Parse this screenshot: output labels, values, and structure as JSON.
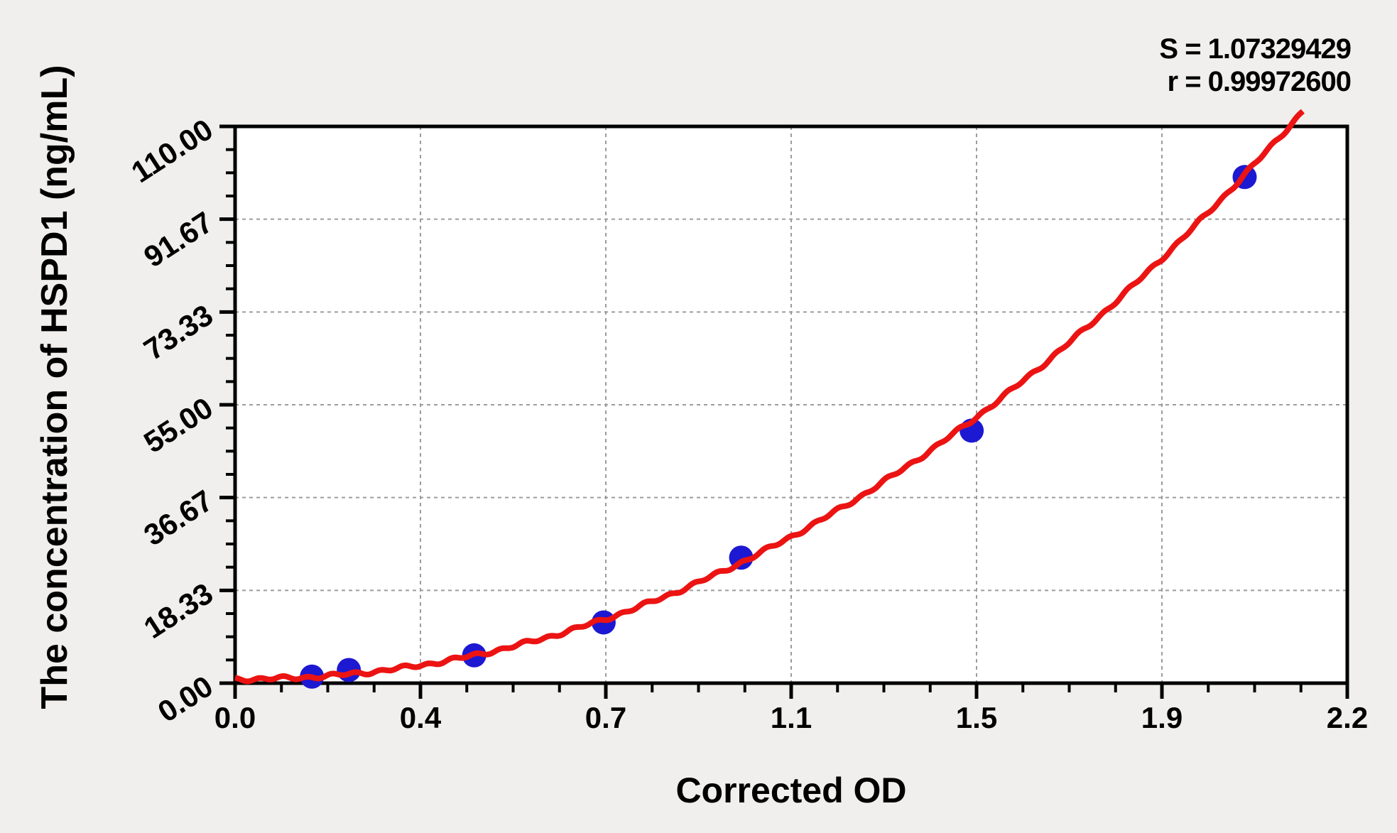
{
  "figure": {
    "background_color": "#f0efed",
    "plot_background_color": "#ffffff",
    "frame_color": "#000000"
  },
  "chart_data": {
    "type": "scatter",
    "title": "",
    "xlabel": "Corrected OD",
    "ylabel": "The concentration of HSPD1 (ng/mL)",
    "annotations": [
      "S = 1.07329429",
      "r = 0.99972600"
    ],
    "xlim": [
      0,
      2.2
    ],
    "ylim": [
      0,
      110
    ],
    "x_tick_labels": [
      "0.0",
      "0.4",
      "0.7",
      "1.1",
      "1.5",
      "1.9",
      "2.2"
    ],
    "x_tick_values": [
      0,
      0.36667,
      0.73333,
      1.1,
      1.46667,
      1.83333,
      2.2
    ],
    "y_tick_labels": [
      "0.00",
      "18.33",
      "36.67",
      "55.00",
      "73.33",
      "91.67",
      "110.00"
    ],
    "y_tick_values": [
      0,
      18.33,
      36.67,
      55.0,
      73.33,
      91.67,
      110.0
    ],
    "minor_ticks_between_majors": 3,
    "grid": {
      "style": "dashed",
      "color": "#9c9c9c",
      "on_major_ticks": true
    },
    "legend": "none",
    "series": [
      {
        "name": "standard-points",
        "type": "scatter",
        "marker": "circle",
        "color": "#1d18d1",
        "points": [
          {
            "x": 0.152,
            "y": 1.3
          },
          {
            "x": 0.225,
            "y": 2.6
          },
          {
            "x": 0.473,
            "y": 5.5
          },
          {
            "x": 0.729,
            "y": 12.0
          },
          {
            "x": 1.001,
            "y": 24.8
          },
          {
            "x": 1.457,
            "y": 49.9
          },
          {
            "x": 1.997,
            "y": 100.0
          }
        ]
      },
      {
        "name": "fitted-curve",
        "type": "line",
        "color": "#ec1313",
        "fit_model": "y = c + a * x^b",
        "fit_params": {
          "a": 23.0,
          "b": 2.12,
          "c": 0.8
        },
        "x_range": [
          0,
          2.115
        ]
      }
    ]
  }
}
